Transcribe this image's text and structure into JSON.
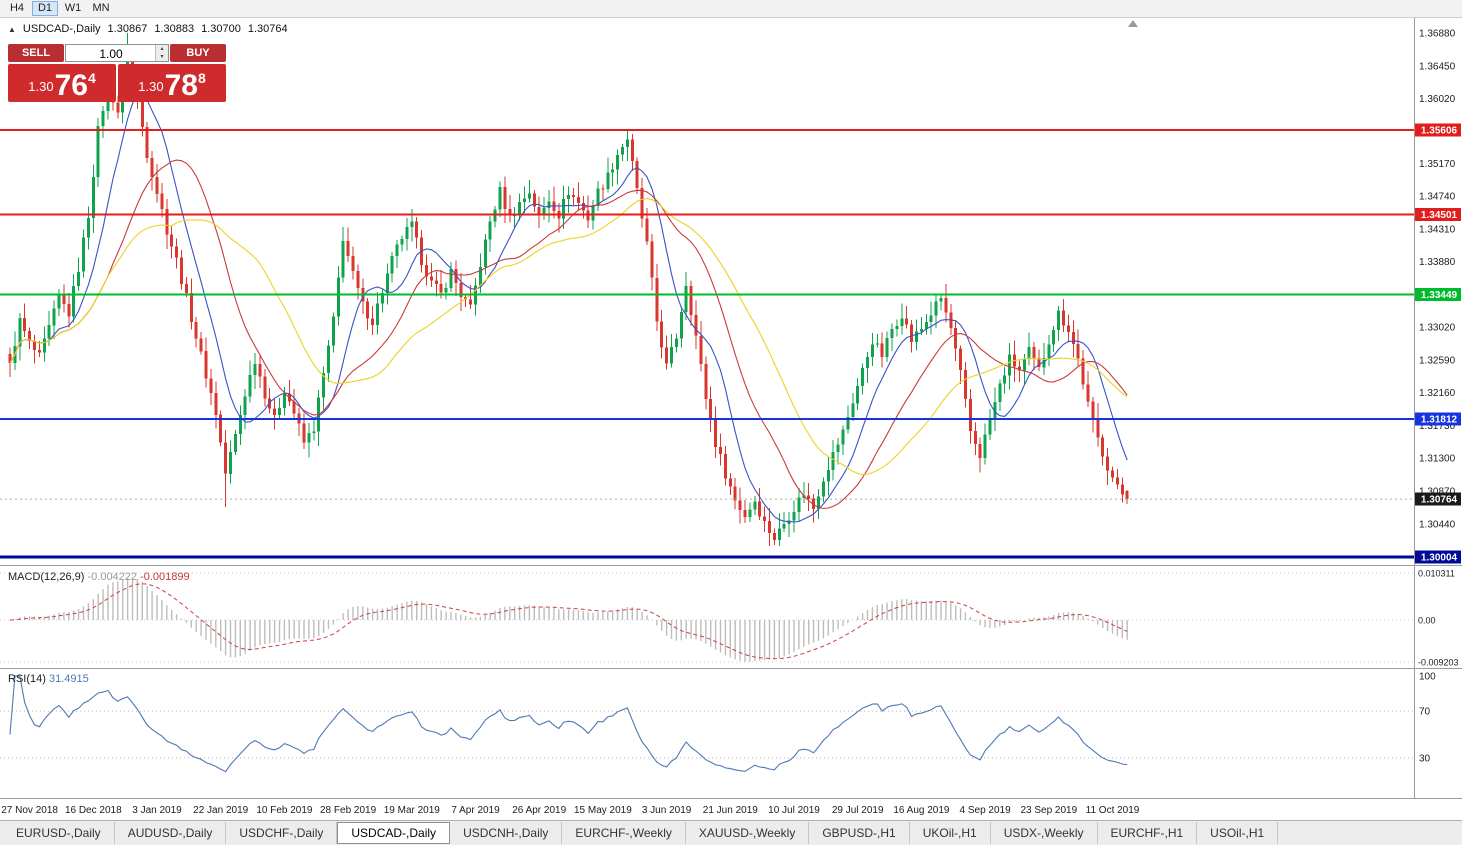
{
  "toolbar": {
    "timeframes": [
      {
        "label": "H4",
        "active": false
      },
      {
        "label": "D1",
        "active": true
      },
      {
        "label": "W1",
        "active": false
      },
      {
        "label": "MN",
        "active": false
      }
    ]
  },
  "icons": {
    "collapse_panel": "▲",
    "spin_up": "▴",
    "spin_down": "▾"
  },
  "chart": {
    "symbol_label": "USDCAD-,Daily",
    "ohlc": {
      "open": "1.30867",
      "high": "1.30883",
      "low": "1.30700",
      "close": "1.30764"
    }
  },
  "trade_panel": {
    "sell_label": "SELL",
    "buy_label": "BUY",
    "volume": "1.00",
    "sell_price": {
      "prefix": "1.30",
      "big": "76",
      "sup": "4"
    },
    "buy_price": {
      "prefix": "1.30",
      "big": "78",
      "sup": "8"
    }
  },
  "price_axis": {
    "ticks": [
      "1.36880",
      "1.36450",
      "1.36020",
      "1.35170",
      "1.34740",
      "1.34310",
      "1.33880",
      "1.33020",
      "1.32590",
      "1.32160",
      "1.31730",
      "1.31300",
      "1.30870",
      "1.30440"
    ]
  },
  "hlines": [
    {
      "price": 1.35606,
      "label": "1.35606",
      "color": "#e21d1d",
      "width": 2
    },
    {
      "price": 1.34501,
      "label": "1.34501",
      "color": "#e21d1d",
      "width": 2
    },
    {
      "price": 1.33449,
      "label": "1.33449",
      "color": "#00bb2d",
      "width": 2
    },
    {
      "price": 1.31812,
      "label": "1.31812",
      "color": "#1733dd",
      "width": 2
    },
    {
      "price": 1.30004,
      "label": "1.30004",
      "color": "#000a96",
      "width": 3
    }
  ],
  "current_price": {
    "value": 1.30764,
    "label": "1.30764",
    "tag_bg": "#1a1a1a"
  },
  "macd": {
    "label": "MACD(12,26,9)",
    "value_main": "-0.004222",
    "value_signal": "-0.001899",
    "axis": [
      "0.010311",
      "0.00",
      "-0.009203"
    ]
  },
  "rsi": {
    "label": "RSI(14)",
    "value": "31.4915",
    "axis": [
      "100",
      "70",
      "30"
    ],
    "levels": [
      70,
      30
    ]
  },
  "tabs": [
    {
      "label": "EURUSD-,Daily",
      "active": false
    },
    {
      "label": "AUDUSD-,Daily",
      "active": false
    },
    {
      "label": "USDCHF-,Daily",
      "active": false
    },
    {
      "label": "USDCAD-,Daily",
      "active": true
    },
    {
      "label": "USDCNH-,Daily",
      "active": false
    },
    {
      "label": "EURCHF-,Weekly",
      "active": false
    },
    {
      "label": "XAUUSD-,Weekly",
      "active": false
    },
    {
      "label": "GBPUSD-,H1",
      "active": false
    },
    {
      "label": "UKOil-,H1",
      "active": false
    },
    {
      "label": "USDX-,Weekly",
      "active": false
    },
    {
      "label": "EURCHF-,H1",
      "active": false
    },
    {
      "label": "USOil-,H1",
      "active": false
    }
  ],
  "chart_data": {
    "type": "candlestick",
    "title": "USDCAD-,Daily",
    "x_labels": [
      "27 Nov 2018",
      "16 Dec 2018",
      "3 Jan 2019",
      "22 Jan 2019",
      "10 Feb 2019",
      "28 Feb 2019",
      "19 Mar 2019",
      "7 Apr 2019",
      "26 Apr 2019",
      "15 May 2019",
      "3 Jun 2019",
      "21 Jun 2019",
      "10 Jul 2019",
      "29 Jul 2019",
      "16 Aug 2019",
      "4 Sep 2019",
      "23 Sep 2019",
      "11 Oct 2019"
    ],
    "x_label_first_bar": 4,
    "x_label_step": 13,
    "bar_count": 229,
    "ylim": [
      1.299,
      1.3708
    ],
    "close_anchors": [
      [
        0,
        1.3255
      ],
      [
        2,
        1.331
      ],
      [
        4,
        1.328
      ],
      [
        6,
        1.3262
      ],
      [
        8,
        1.33
      ],
      [
        10,
        1.334
      ],
      [
        12,
        1.332
      ],
      [
        14,
        1.338
      ],
      [
        16,
        1.345
      ],
      [
        18,
        1.356
      ],
      [
        20,
        1.362
      ],
      [
        22,
        1.3585
      ],
      [
        24,
        1.3655
      ],
      [
        26,
        1.36
      ],
      [
        28,
        1.353
      ],
      [
        30,
        1.348
      ],
      [
        32,
        1.343
      ],
      [
        34,
        1.339
      ],
      [
        36,
        1.334
      ],
      [
        38,
        1.329
      ],
      [
        40,
        1.324
      ],
      [
        42,
        1.319
      ],
      [
        44,
        1.311
      ],
      [
        46,
        1.316
      ],
      [
        48,
        1.3215
      ],
      [
        50,
        1.326
      ],
      [
        52,
        1.3215
      ],
      [
        54,
        1.318
      ],
      [
        56,
        1.322
      ],
      [
        58,
        1.319
      ],
      [
        60,
        1.315
      ],
      [
        62,
        1.317
      ],
      [
        64,
        1.324
      ],
      [
        66,
        1.331
      ],
      [
        68,
        1.342
      ],
      [
        70,
        1.337
      ],
      [
        72,
        1.333
      ],
      [
        74,
        1.331
      ],
      [
        76,
        1.335
      ],
      [
        78,
        1.339
      ],
      [
        80,
        1.342
      ],
      [
        82,
        1.3435
      ],
      [
        84,
        1.339
      ],
      [
        86,
        1.336
      ],
      [
        88,
        1.3345
      ],
      [
        90,
        1.3375
      ],
      [
        92,
        1.3345
      ],
      [
        94,
        1.3325
      ],
      [
        96,
        1.3385
      ],
      [
        98,
        1.344
      ],
      [
        100,
        1.348
      ],
      [
        102,
        1.3445
      ],
      [
        104,
        1.3465
      ],
      [
        106,
        1.348
      ],
      [
        108,
        1.3445
      ],
      [
        110,
        1.347
      ],
      [
        112,
        1.345
      ],
      [
        114,
        1.348
      ],
      [
        116,
        1.3465
      ],
      [
        118,
        1.3445
      ],
      [
        120,
        1.348
      ],
      [
        122,
        1.35
      ],
      [
        124,
        1.353
      ],
      [
        126,
        1.355
      ],
      [
        128,
        1.348
      ],
      [
        130,
        1.341
      ],
      [
        132,
        1.331
      ],
      [
        134,
        1.325
      ],
      [
        136,
        1.329
      ],
      [
        138,
        1.336
      ],
      [
        140,
        1.329
      ],
      [
        142,
        1.321
      ],
      [
        144,
        1.315
      ],
      [
        146,
        1.311
      ],
      [
        148,
        1.3075
      ],
      [
        150,
        1.3055
      ],
      [
        152,
        1.3075
      ],
      [
        154,
        1.3045
      ],
      [
        156,
        1.3025
      ],
      [
        158,
        1.3045
      ],
      [
        160,
        1.3065
      ],
      [
        162,
        1.3085
      ],
      [
        164,
        1.3065
      ],
      [
        166,
        1.3105
      ],
      [
        168,
        1.3135
      ],
      [
        170,
        1.3165
      ],
      [
        172,
        1.3205
      ],
      [
        174,
        1.3245
      ],
      [
        176,
        1.3285
      ],
      [
        178,
        1.3265
      ],
      [
        180,
        1.33
      ],
      [
        182,
        1.332
      ],
      [
        184,
        1.3285
      ],
      [
        186,
        1.33
      ],
      [
        188,
        1.332
      ],
      [
        190,
        1.334
      ],
      [
        192,
        1.33
      ],
      [
        194,
        1.324
      ],
      [
        196,
        1.3165
      ],
      [
        198,
        1.3135
      ],
      [
        200,
        1.318
      ],
      [
        202,
        1.3225
      ],
      [
        204,
        1.326
      ],
      [
        206,
        1.3245
      ],
      [
        208,
        1.327
      ],
      [
        210,
        1.3245
      ],
      [
        212,
        1.3285
      ],
      [
        214,
        1.332
      ],
      [
        216,
        1.33
      ],
      [
        218,
        1.326
      ],
      [
        220,
        1.32
      ],
      [
        222,
        1.3155
      ],
      [
        224,
        1.312
      ],
      [
        226,
        1.309
      ],
      [
        228,
        1.30764
      ]
    ],
    "forced": {
      "peak_high": 1.3688,
      "trough_low": 1.3016,
      "second_low_bar": 44,
      "second_low": 1.3066,
      "last_bar": [
        1.30867,
        1.30883,
        1.307,
        1.30764
      ]
    },
    "moving_averages": [
      {
        "period": 9,
        "color": "#3853c8"
      },
      {
        "period": 21,
        "color": "#c93b3b"
      },
      {
        "period": 34,
        "color": "#ecd223"
      }
    ],
    "colors": {
      "up": "#0fa34d",
      "down": "#d9362e",
      "macd_hist": "#bdbdbd",
      "macd_signal": "#cc4040",
      "rsi_line": "#4d79b3"
    }
  }
}
